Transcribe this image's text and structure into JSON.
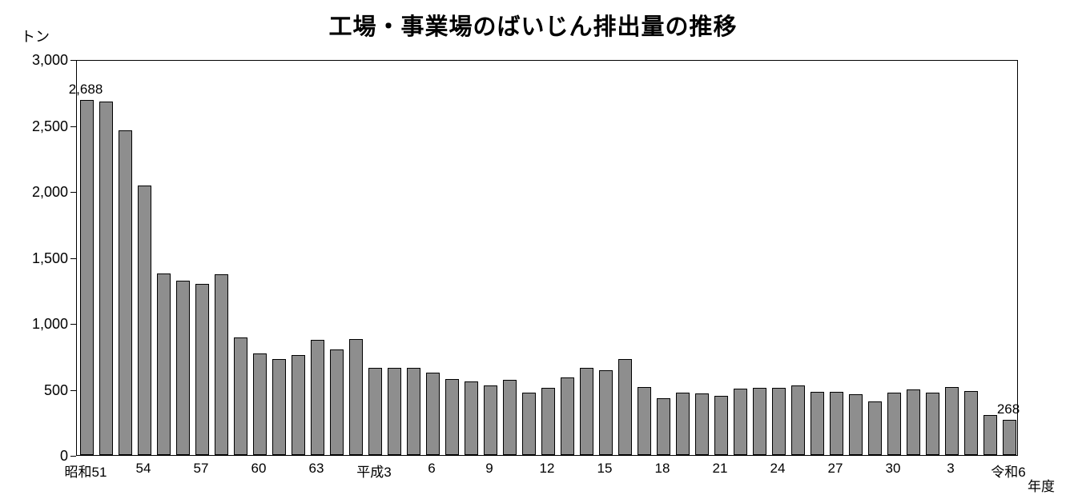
{
  "chart": {
    "title": "工場・事業場のばいじん排出量の推移",
    "y_unit_label": "トン",
    "x_axis_label": "年度"
  },
  "chart_data": {
    "type": "bar",
    "title": "工場・事業場のばいじん排出量の推移",
    "ylabel": "トン",
    "xlabel": "年度",
    "ylim": [
      0,
      3000
    ],
    "y_tick_interval": 500,
    "y_tick_labels": [
      "3,000",
      "2,500",
      "2,000",
      "1,500",
      "1,000",
      "500",
      "0"
    ],
    "values": [
      2688,
      2680,
      2460,
      2040,
      1375,
      1320,
      1295,
      1370,
      890,
      770,
      725,
      760,
      870,
      800,
      880,
      660,
      660,
      660,
      625,
      575,
      560,
      525,
      570,
      475,
      510,
      585,
      660,
      640,
      730,
      515,
      430,
      475,
      465,
      450,
      505,
      510,
      510,
      525,
      480,
      480,
      460,
      405,
      470,
      500,
      470,
      515,
      485,
      305,
      268
    ],
    "x_ticks": [
      {
        "index": 0,
        "label": "昭和51"
      },
      {
        "index": 3,
        "label": "54"
      },
      {
        "index": 6,
        "label": "57"
      },
      {
        "index": 9,
        "label": "60"
      },
      {
        "index": 12,
        "label": "63"
      },
      {
        "index": 15,
        "label": "平成3"
      },
      {
        "index": 18,
        "label": "6"
      },
      {
        "index": 21,
        "label": "9"
      },
      {
        "index": 24,
        "label": "12"
      },
      {
        "index": 27,
        "label": "15"
      },
      {
        "index": 30,
        "label": "18"
      },
      {
        "index": 33,
        "label": "21"
      },
      {
        "index": 36,
        "label": "24"
      },
      {
        "index": 39,
        "label": "27"
      },
      {
        "index": 42,
        "label": "30"
      },
      {
        "index": 45,
        "label": "3"
      },
      {
        "index": 48,
        "label": "令和6"
      }
    ],
    "data_labels": [
      {
        "index": 0,
        "text": "2,688"
      },
      {
        "index": 48,
        "text": "268"
      }
    ],
    "bar_fill": "#8e8e8e",
    "bar_border": "#000000",
    "legend": "none",
    "grid": "off"
  }
}
